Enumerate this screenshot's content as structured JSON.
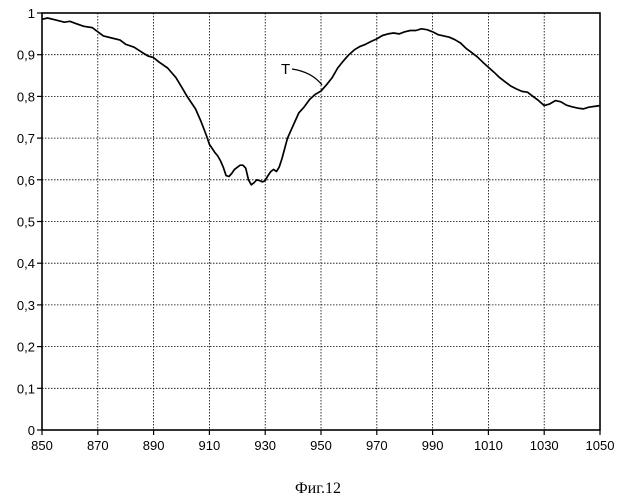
{
  "chart_data": {
    "type": "line",
    "title": "",
    "xlabel": "",
    "ylabel": "",
    "xlim": [
      850,
      1050
    ],
    "ylim": [
      0,
      1
    ],
    "grid": true,
    "x_ticks": [
      "850",
      "870",
      "890",
      "910",
      "930",
      "950",
      "970",
      "990",
      "1010",
      "1030",
      "1050"
    ],
    "y_ticks": [
      "0",
      "0,1",
      "0,2",
      "0,3",
      "0,4",
      "0,5",
      "0,6",
      "0,7",
      "0,8",
      "0,9",
      "1"
    ],
    "annotations": [
      "T"
    ],
    "series": [
      {
        "name": "T",
        "x": [
          850,
          852,
          855,
          858,
          860,
          862,
          865,
          868,
          870,
          872,
          875,
          878,
          880,
          883,
          886,
          888,
          890,
          892,
          895,
          898,
          900,
          902,
          905,
          907,
          909,
          910,
          911,
          912,
          913,
          914,
          915,
          916,
          917,
          918,
          919,
          920,
          921,
          922,
          923,
          924,
          925,
          926,
          927,
          928,
          929,
          930,
          931,
          932,
          933,
          934,
          935,
          936,
          937,
          938,
          940,
          942,
          944,
          946,
          948,
          950,
          952,
          954,
          956,
          958,
          960,
          962,
          964,
          966,
          968,
          970,
          972,
          974,
          976,
          978,
          980,
          982,
          984,
          986,
          988,
          990,
          992,
          994,
          996,
          998,
          1000,
          1002,
          1004,
          1006,
          1008,
          1010,
          1012,
          1014,
          1016,
          1018,
          1020,
          1022,
          1024,
          1026,
          1028,
          1030,
          1032,
          1034,
          1036,
          1038,
          1040,
          1042,
          1044,
          1046,
          1048,
          1050
        ],
        "y": [
          0.985,
          0.988,
          0.983,
          0.978,
          0.98,
          0.975,
          0.968,
          0.965,
          0.955,
          0.945,
          0.94,
          0.935,
          0.925,
          0.918,
          0.905,
          0.897,
          0.893,
          0.882,
          0.868,
          0.845,
          0.823,
          0.8,
          0.77,
          0.74,
          0.705,
          0.685,
          0.675,
          0.665,
          0.657,
          0.645,
          0.63,
          0.61,
          0.608,
          0.615,
          0.625,
          0.63,
          0.635,
          0.635,
          0.628,
          0.6,
          0.588,
          0.593,
          0.6,
          0.598,
          0.595,
          0.598,
          0.61,
          0.62,
          0.625,
          0.62,
          0.63,
          0.65,
          0.675,
          0.7,
          0.73,
          0.76,
          0.775,
          0.793,
          0.805,
          0.813,
          0.828,
          0.845,
          0.868,
          0.885,
          0.9,
          0.912,
          0.92,
          0.925,
          0.932,
          0.938,
          0.946,
          0.95,
          0.952,
          0.95,
          0.955,
          0.958,
          0.958,
          0.962,
          0.96,
          0.955,
          0.948,
          0.945,
          0.942,
          0.936,
          0.928,
          0.915,
          0.905,
          0.895,
          0.882,
          0.87,
          0.858,
          0.845,
          0.835,
          0.825,
          0.818,
          0.812,
          0.81,
          0.8,
          0.79,
          0.778,
          0.782,
          0.79,
          0.787,
          0.779,
          0.775,
          0.772,
          0.77,
          0.774,
          0.776,
          0.778
        ]
      }
    ]
  },
  "figure": {
    "caption": "Фиг.12"
  }
}
